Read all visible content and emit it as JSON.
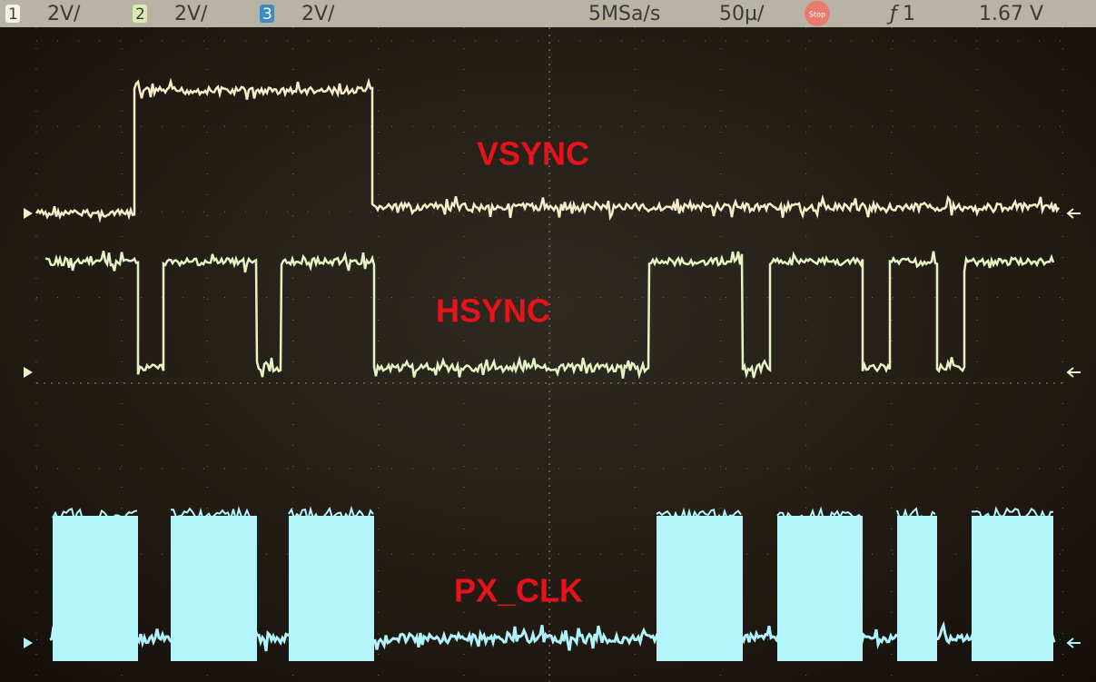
{
  "header": {
    "channels": [
      {
        "id": "1",
        "scale": "2V/"
      },
      {
        "id": "2",
        "scale": "2V/"
      },
      {
        "id": "3",
        "scale": "2V/"
      }
    ],
    "sample_rate": "5MSa/s",
    "timebase": "50µ/",
    "status": "Stop",
    "trigger_source": "1",
    "trigger_level": "1.67 V"
  },
  "traces": [
    {
      "label": "VSYNC"
    },
    {
      "label": "HSYNC"
    },
    {
      "label": "PX_CLK"
    }
  ]
}
